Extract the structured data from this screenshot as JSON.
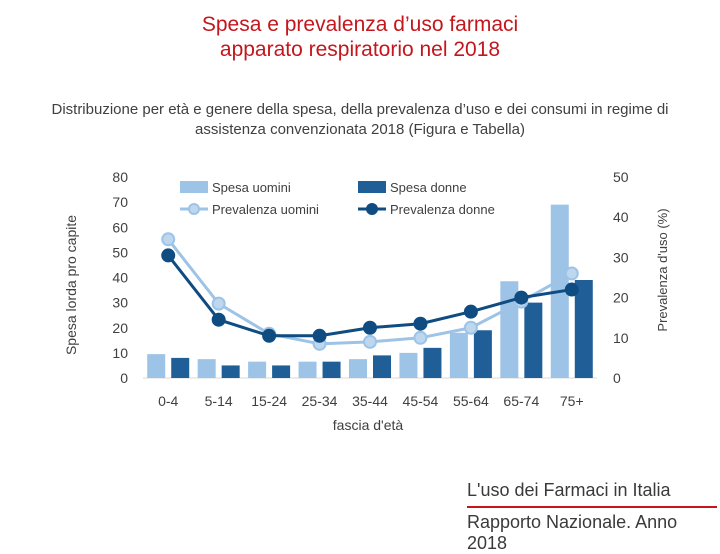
{
  "slide": {
    "title_line1": "Spesa e prevalenza d’uso farmaci",
    "title_line2": "apparato respiratorio nel 2018",
    "title_color": "#c4161c"
  },
  "footer": {
    "line1": "L'uso dei Farmaci in Italia",
    "line2": "Rapporto Nazionale. Anno 2018"
  },
  "chart_data": {
    "type": "bar",
    "title_line1": "Distribuzione per età e genere della spesa, della prevalenza d’uso e dei consumi in regime di",
    "title_line2": "assistenza convenzionata 2018 (Figura e Tabella)",
    "xlabel": "fascia d'età",
    "ylabel": "Spesa lorda pro capite",
    "y2label": "Prevalenza d'uso (%)",
    "categories": [
      "0-4",
      "5-14",
      "15-24",
      "25-34",
      "35-44",
      "45-54",
      "55-64",
      "65-74",
      "75+"
    ],
    "ylim": [
      0,
      80
    ],
    "yticks": [
      "0",
      "10",
      "20",
      "30",
      "40",
      "50",
      "60",
      "70",
      "80"
    ],
    "y2lim": [
      0,
      50
    ],
    "y2ticks": [
      "0",
      "10",
      "20",
      "30",
      "40",
      "50"
    ],
    "bar_series": [
      {
        "name": "Spesa uomini",
        "color": "#9dc3e6",
        "values": [
          9.5,
          7.5,
          6.5,
          6.5,
          7.5,
          10,
          18,
          38.5,
          69
        ]
      },
      {
        "name": "Spesa donne",
        "color": "#1f5e96",
        "values": [
          8,
          5,
          5,
          6.5,
          9,
          12,
          19,
          30,
          39
        ]
      }
    ],
    "line_series": [
      {
        "name": "Prevalenza uomini",
        "color": "#9dc3e6",
        "marker_fill": "#bdd7ee",
        "values": [
          34.5,
          18.5,
          11,
          8.5,
          9,
          10,
          12.5,
          19,
          26
        ]
      },
      {
        "name": "Prevalenza donne",
        "color": "#0f4c81",
        "marker_fill": "#0f4c81",
        "values": [
          30.5,
          14.5,
          10.5,
          10.5,
          12.5,
          13.5,
          16.5,
          20,
          22
        ]
      }
    ],
    "legend_placement": "top-left"
  }
}
